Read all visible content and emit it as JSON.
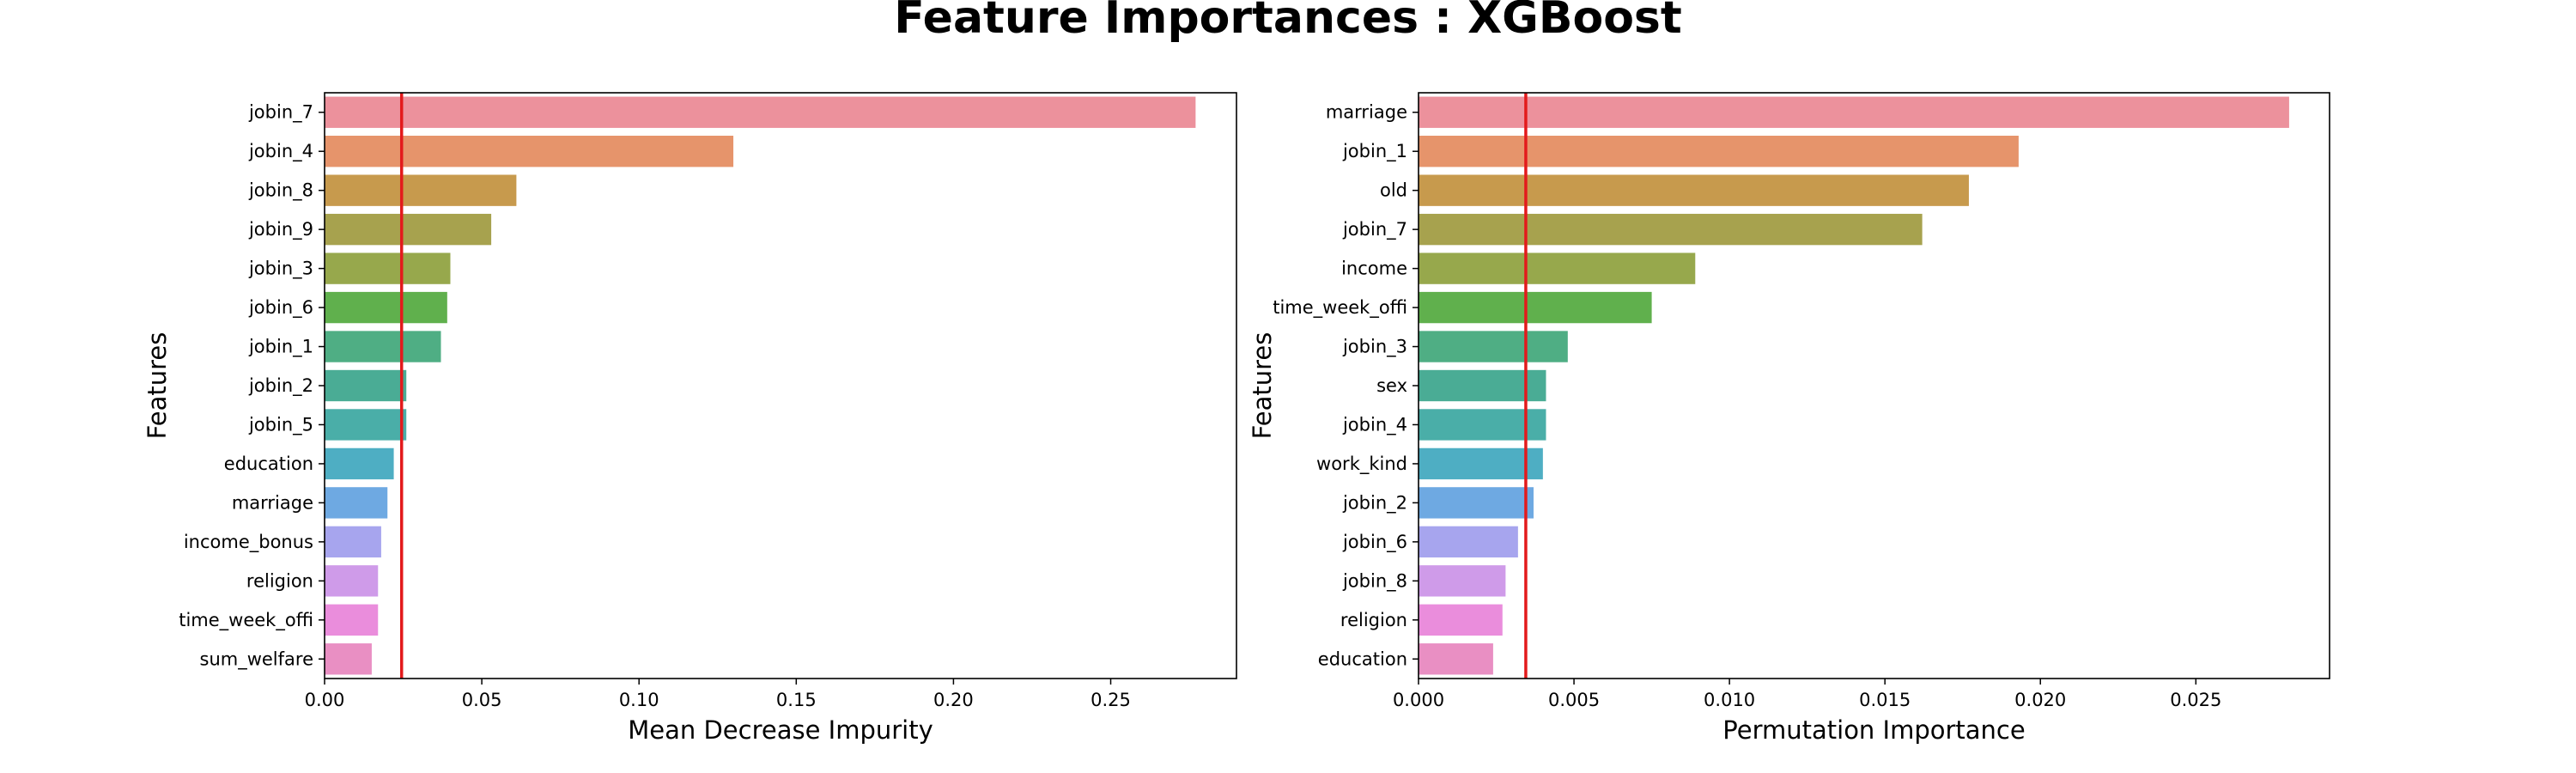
{
  "title": "Feature Importances : XGBoost",
  "colors": [
    "#ec919c",
    "#e6946b",
    "#c79a4d",
    "#a7a24e",
    "#97a84c",
    "#60b04d",
    "#4fae84",
    "#4aac95",
    "#4aaea8",
    "#4eaec3",
    "#6ea9e2",
    "#a7a5ee",
    "#cf9be9",
    "#ea8ddc",
    "#e98fc3"
  ],
  "threshold_color": "#e31a1c",
  "chart_data": [
    {
      "type": "bar",
      "orientation": "horizontal",
      "xlabel": "Mean Decrease Impurity",
      "ylabel": "Features",
      "xlim": [
        0,
        0.29
      ],
      "xticks": [
        0.0,
        0.05,
        0.1,
        0.15,
        0.2,
        0.25
      ],
      "xtick_labels": [
        "0.00",
        "0.05",
        "0.10",
        "0.15",
        "0.20",
        "0.25"
      ],
      "categories": [
        "jobin_7",
        "jobin_4",
        "jobin_8",
        "jobin_9",
        "jobin_3",
        "jobin_6",
        "jobin_1",
        "jobin_2",
        "jobin_5",
        "education",
        "marriage",
        "income_bonus",
        "religion",
        "time_week_offi",
        "sum_welfare"
      ],
      "values": [
        0.277,
        0.13,
        0.061,
        0.053,
        0.04,
        0.039,
        0.037,
        0.026,
        0.026,
        0.022,
        0.02,
        0.018,
        0.017,
        0.017,
        0.015
      ],
      "threshold": 0.0245,
      "grid": false
    },
    {
      "type": "bar",
      "orientation": "horizontal",
      "xlabel": "Permutation Importance",
      "ylabel": "Features",
      "xlim": [
        0,
        0.0293
      ],
      "xticks": [
        0.0,
        0.005,
        0.01,
        0.015,
        0.02,
        0.025
      ],
      "xtick_labels": [
        "0.000",
        "0.005",
        "0.010",
        "0.015",
        "0.020",
        "0.025"
      ],
      "categories": [
        "marriage",
        "jobin_1",
        "old",
        "jobin_7",
        "income",
        "time_week_offi",
        "jobin_3",
        "sex",
        "jobin_4",
        "work_kind",
        "jobin_2",
        "jobin_6",
        "jobin_8",
        "religion",
        "education"
      ],
      "values": [
        0.028,
        0.0193,
        0.0177,
        0.0162,
        0.0089,
        0.0075,
        0.0048,
        0.0041,
        0.0041,
        0.004,
        0.0037,
        0.0032,
        0.0028,
        0.0027,
        0.0024
      ],
      "threshold": 0.00345,
      "grid": false
    }
  ]
}
